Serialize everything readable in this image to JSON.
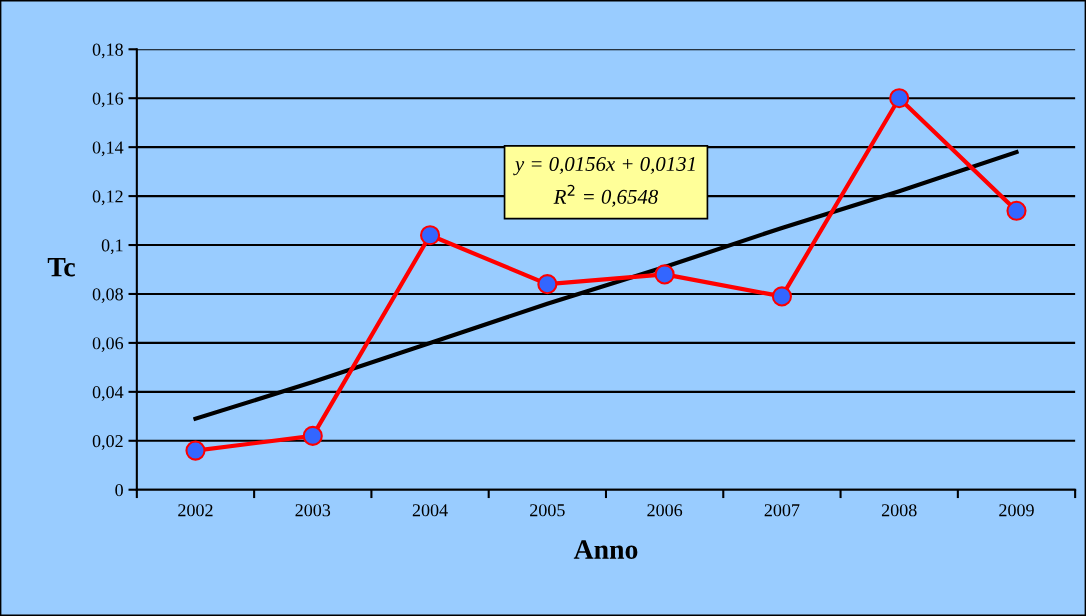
{
  "chart_data": {
    "type": "line",
    "xlabel": "Anno",
    "ylabel": "Tc",
    "categories": [
      "2002",
      "2003",
      "2004",
      "2005",
      "2006",
      "2007",
      "2008",
      "2009"
    ],
    "series": [
      {
        "color": "#ff0000",
        "marker": "circle",
        "values": [
          0.016,
          0.022,
          0.104,
          0.084,
          0.088,
          0.079,
          0.16,
          0.114
        ]
      },
      {
        "color": "#000000",
        "marker": "none",
        "values": [
          0.029,
          0.044,
          0.06,
          0.076,
          0.091,
          0.107,
          0.122,
          0.138
        ]
      }
    ],
    "ylim": [
      0,
      0.18
    ],
    "yticks": [
      0,
      {
        "value": 0.02,
        "label": "0,02"
      },
      {
        "value": 0.04,
        "label": "0,04"
      },
      {
        "value": 0.06,
        "label": "0,06"
      },
      {
        "value": 0.08,
        "label": "0,08"
      },
      {
        "value": 0.1,
        "label": "0,1"
      },
      {
        "value": 0.12,
        "label": "0,12"
      },
      {
        "value": 0.14,
        "label": "0,14"
      },
      {
        "value": 0.16,
        "label": "0,16"
      },
      {
        "value": 0.18,
        "label": "0,18"
      }
    ],
    "grid": "y",
    "legend": false,
    "annotations": [
      "y = 0,0156x + 0,0131",
      "R$^{2}$ = 0,6548"
    ]
  }
}
